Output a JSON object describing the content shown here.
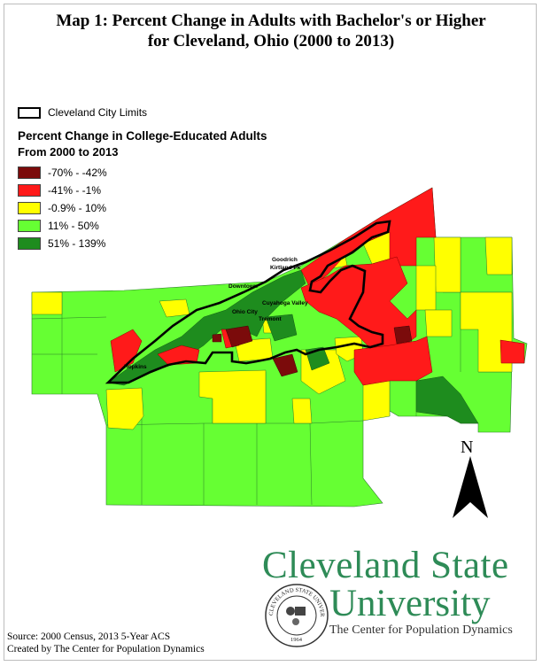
{
  "title": {
    "line1": "Map 1: Percent Change in Adults with Bachelor's or Higher",
    "line2": "for Cleveland, Ohio (2000 to 2013)"
  },
  "legend": {
    "city_limits": "Cleveland City Limits",
    "title": "Percent Change in College-Educated Adults",
    "subtitle": "From 2000 to 2013",
    "classes": [
      {
        "label": "-70% - -42%",
        "color": "#7b0b0b"
      },
      {
        "label": "-41% - -1%",
        "color": "#ff1a1a"
      },
      {
        "label": "-0.9% - 10%",
        "color": "#ffff00"
      },
      {
        "label": "11% - 50%",
        "color": "#66ff33"
      },
      {
        "label": "51% - 139%",
        "color": "#1e8c1e"
      }
    ]
  },
  "places": {
    "goodrich": "Goodrich",
    "kirtland": "Kirtland Pk",
    "downtown": "Downtown",
    "ohio_city": "Ohio City",
    "cuyahoga_valley": "Cuyahoga Valley",
    "tremont": "Tremont",
    "hopkins": "Hopkins"
  },
  "north_arrow": {
    "label": "N"
  },
  "logo": {
    "name_line1": "Cleveland State",
    "name_line2": "University",
    "center": "The Center for Population Dynamics",
    "seal_text": "CLEVELAND STATE UNIVERSITY",
    "seal_year": "1964"
  },
  "source": {
    "line1": "Source: 2000 Census, 2013 5-Year ACS",
    "line2": "Created by The Center for Population Dynamics"
  }
}
